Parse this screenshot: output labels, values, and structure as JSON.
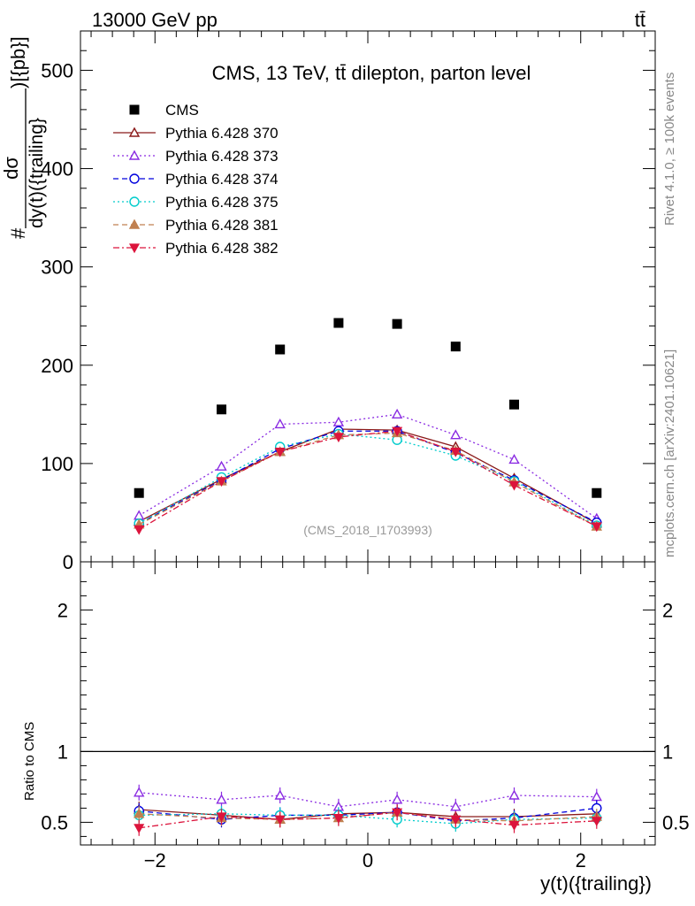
{
  "header": {
    "energy_label": "13000 GeV pp",
    "process_label": "tt̄"
  },
  "side_labels": {
    "rivet": "Rivet 4.1.0, ≥ 100k events",
    "source": "mcplots.cern.ch [arXiv:2401.10621]"
  },
  "chart_data": [
    {
      "type": "scatter",
      "panel": "main",
      "title": "CMS, 13 TeV, tt̄ dilepton, parton level",
      "watermark": "(CMS_2018_I1703993)",
      "ylabel_prefix": "#",
      "ylabel_num": "dσ",
      "ylabel_den": "dy(t)({trailing}",
      "ylabel_suffix": ")[{pb}]",
      "xlim": [
        -2.7,
        2.7
      ],
      "ylim": [
        0,
        540
      ],
      "y_ticks": [
        0,
        100,
        200,
        300,
        400,
        500
      ],
      "y_tick_labels": [
        "0",
        "100",
        "200",
        "300",
        "400",
        "500"
      ],
      "x": [
        -2.15,
        -1.375,
        -0.825,
        -0.275,
        0.275,
        0.825,
        1.375,
        2.15
      ],
      "series": [
        {
          "name": "CMS",
          "color": "#000000",
          "marker": "square",
          "line": "none",
          "values": [
            70,
            155,
            216,
            243,
            242,
            219,
            160,
            70
          ]
        },
        {
          "name": "Pythia 6.428 370",
          "color": "#8b1a1a",
          "marker": "triangle-up-open",
          "line": "solid",
          "values": [
            41,
            84,
            112,
            135,
            134,
            117,
            85,
            39
          ]
        },
        {
          "name": "Pythia 6.428 373",
          "color": "#8a2be2",
          "marker": "triangle-up-open",
          "line": "dotted",
          "values": [
            47,
            97,
            140,
            142,
            150,
            129,
            104,
            44
          ]
        },
        {
          "name": "Pythia 6.428 374",
          "color": "#0000dd",
          "marker": "circle-open",
          "line": "dashed",
          "values": [
            39,
            83,
            115,
            133,
            133,
            111,
            83,
            40
          ]
        },
        {
          "name": "Pythia 6.428 375",
          "color": "#00cccc",
          "marker": "circle-open",
          "line": "dotted",
          "values": [
            39,
            86,
            117,
            130,
            124,
            108,
            82,
            37
          ]
        },
        {
          "name": "Pythia 6.428 381",
          "color": "#c08050",
          "marker": "triangle-up",
          "line": "dashed",
          "values": [
            38,
            82,
            112,
            129,
            131,
            113,
            81,
            36
          ]
        },
        {
          "name": "Pythia 6.428 382",
          "color": "#dc143c",
          "marker": "triangle-down",
          "line": "dashdot",
          "values": [
            33,
            82,
            112,
            127,
            133,
            112,
            78,
            36
          ]
        }
      ]
    },
    {
      "type": "line",
      "panel": "ratio",
      "ylabel": "Ratio to CMS",
      "xlabel": "y(t)({trailing})",
      "xlim": [
        -2.7,
        2.7
      ],
      "ylim": [
        0.34,
        2.34
      ],
      "x_ticks": [
        -2,
        0,
        2
      ],
      "x_tick_labels": [
        "−2",
        "0",
        "2"
      ],
      "y_ticks": [
        0.5,
        1,
        2
      ],
      "y_tick_labels": [
        "0.5",
        "1",
        "2"
      ],
      "reference": 1,
      "x": [
        -2.15,
        -1.375,
        -0.825,
        -0.275,
        0.275,
        0.825,
        1.375,
        2.15
      ],
      "series": [
        {
          "name": "Pythia 6.428 370",
          "values": [
            0.59,
            0.55,
            0.52,
            0.56,
            0.57,
            0.54,
            0.54,
            0.56
          ]
        },
        {
          "name": "Pythia 6.428 373",
          "values": [
            0.71,
            0.66,
            0.69,
            0.61,
            0.66,
            0.61,
            0.69,
            0.68
          ]
        },
        {
          "name": "Pythia 6.428 374",
          "values": [
            0.58,
            0.52,
            0.55,
            0.55,
            0.57,
            0.51,
            0.53,
            0.6
          ]
        },
        {
          "name": "Pythia 6.428 375",
          "values": [
            0.55,
            0.56,
            0.55,
            0.55,
            0.52,
            0.49,
            0.52,
            0.53
          ]
        },
        {
          "name": "Pythia 6.428 381",
          "values": [
            0.56,
            0.53,
            0.52,
            0.53,
            0.57,
            0.52,
            0.51,
            0.54
          ]
        },
        {
          "name": "Pythia 6.428 382",
          "values": [
            0.46,
            0.54,
            0.52,
            0.53,
            0.57,
            0.52,
            0.48,
            0.51
          ]
        }
      ]
    }
  ]
}
